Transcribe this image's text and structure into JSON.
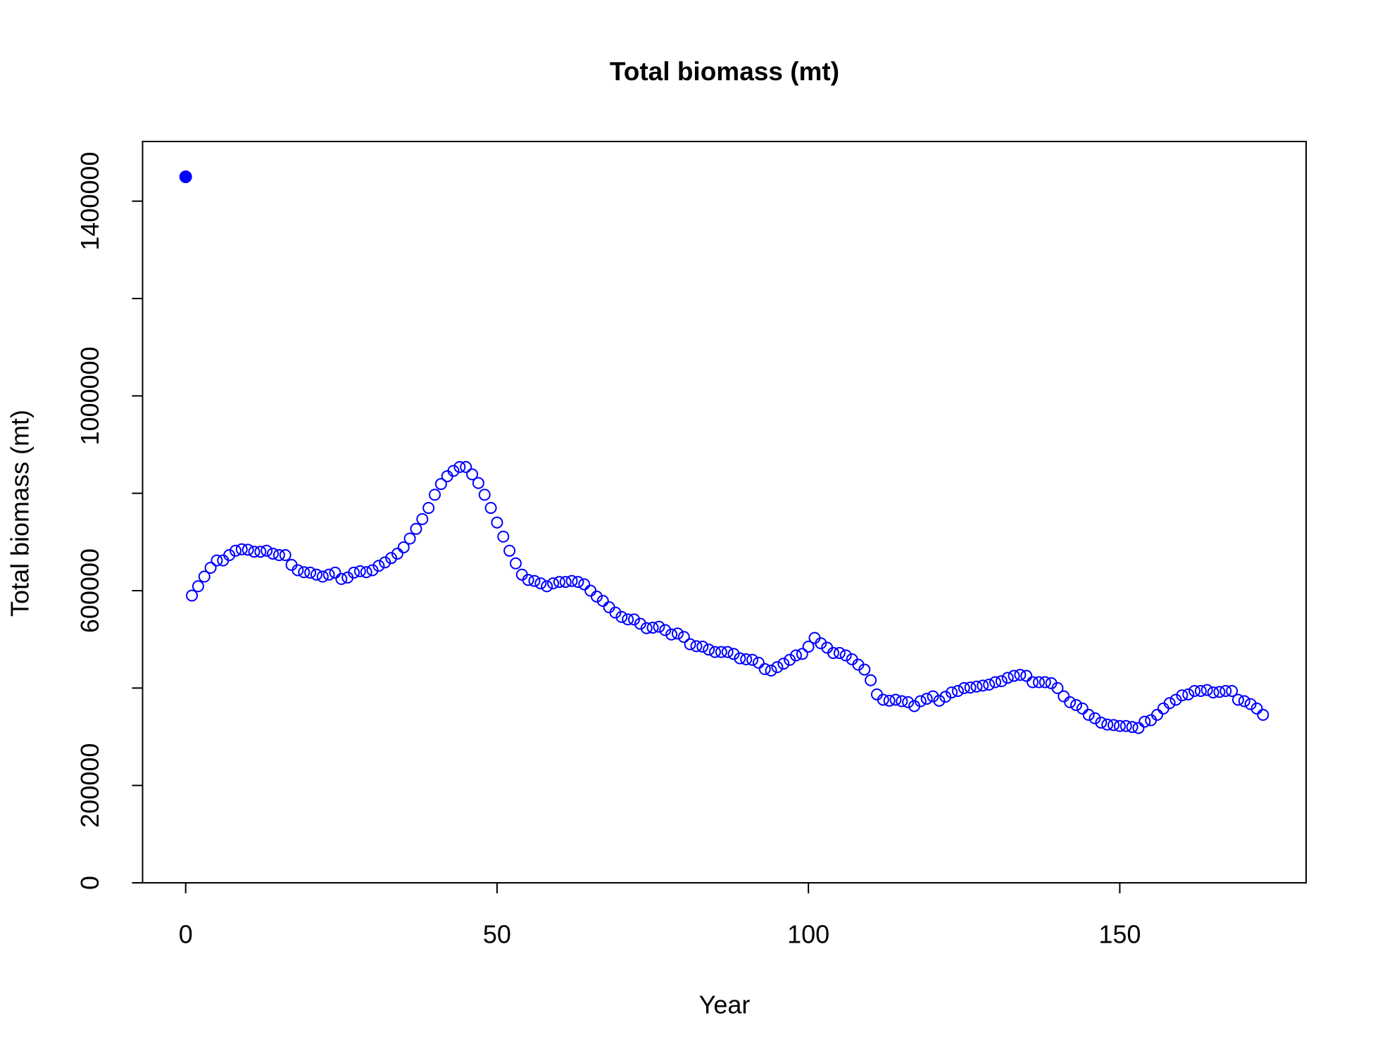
{
  "chart_data": {
    "type": "scatter",
    "title": "Total biomass (mt)",
    "x_label": "Year",
    "y_label": "Total biomass (mt)",
    "xlim": [
      -6.92,
      179.92
    ],
    "ylim": [
      0,
      1522500
    ],
    "xticks": [
      0,
      50,
      100,
      150
    ],
    "yticks": [
      0,
      200000,
      600000,
      1000000,
      1400000
    ],
    "yminorticks": [
      400000,
      800000,
      1200000
    ],
    "grid": false,
    "series": [
      {
        "color": "#0000ff",
        "filled": true,
        "x": [
          0
        ],
        "values": [
          1450000
        ]
      },
      {
        "color": "#0000ff",
        "filled": false,
        "x": [
          1,
          2,
          3,
          4,
          5,
          6,
          7,
          8,
          9,
          10,
          11,
          12,
          13,
          14,
          15,
          16,
          17,
          18,
          19,
          20,
          21,
          22,
          23,
          24,
          25,
          26,
          27,
          28,
          29,
          30,
          31,
          32,
          33,
          34,
          35,
          36,
          37,
          38,
          39,
          40,
          41,
          42,
          43,
          44,
          45,
          46,
          47,
          48,
          49,
          50,
          51,
          52,
          53,
          54,
          55,
          56,
          57,
          58,
          59,
          60,
          61,
          62,
          63,
          64,
          65,
          66,
          67,
          68,
          69,
          70,
          71,
          72,
          73,
          74,
          75,
          76,
          77,
          78,
          79,
          80,
          81,
          82,
          83,
          84,
          85,
          86,
          87,
          88,
          89,
          90,
          91,
          92,
          93,
          94,
          95,
          96,
          97,
          98,
          99,
          100,
          101,
          102,
          103,
          104,
          105,
          106,
          107,
          108,
          109,
          110,
          111,
          112,
          113,
          114,
          115,
          116,
          117,
          118,
          119,
          120,
          121,
          122,
          123,
          124,
          125,
          126,
          127,
          128,
          129,
          130,
          131,
          132,
          133,
          134,
          135,
          136,
          137,
          138,
          139,
          140,
          141,
          142,
          143,
          144,
          145,
          146,
          147,
          148,
          149,
          150,
          151,
          152,
          153,
          154,
          155,
          156,
          157,
          158,
          159,
          160,
          161,
          162,
          163,
          164,
          165,
          166,
          167,
          168,
          169,
          170,
          171,
          172,
          173
        ],
        "values": [
          590000,
          609000,
          629000,
          647000,
          662000,
          662000,
          673000,
          682000,
          685000,
          684000,
          680000,
          680000,
          682000,
          676000,
          673000,
          673000,
          653000,
          642000,
          638000,
          637000,
          633000,
          629000,
          633000,
          637000,
          624000,
          627000,
          637000,
          640000,
          638000,
          642000,
          651000,
          658000,
          667000,
          676000,
          689000,
          707000,
          727000,
          747000,
          770000,
          797000,
          819000,
          835000,
          846000,
          854000,
          854000,
          839000,
          821000,
          797000,
          770000,
          740000,
          711000,
          682000,
          656000,
          633000,
          622000,
          620000,
          615000,
          609000,
          615000,
          618000,
          618000,
          620000,
          618000,
          613000,
          600000,
          588000,
          579000,
          566000,
          555000,
          546000,
          541000,
          541000,
          532000,
          523000,
          524000,
          526000,
          519000,
          510000,
          512000,
          505000,
          490000,
          486000,
          485000,
          479000,
          474000,
          474000,
          474000,
          470000,
          461000,
          459000,
          458000,
          452000,
          439000,
          436000,
          443000,
          450000,
          458000,
          467000,
          470000,
          485000,
          503000,
          492000,
          483000,
          472000,
          472000,
          467000,
          459000,
          448000,
          438000,
          416000,
          387000,
          376000,
          374000,
          376000,
          373000,
          371000,
          363000,
          373000,
          378000,
          383000,
          374000,
          382000,
          391000,
          394000,
          400000,
          401000,
          403000,
          405000,
          407000,
          412000,
          414000,
          421000,
          425000,
          427000,
          425000,
          412000,
          412000,
          412000,
          410000,
          400000,
          383000,
          371000,
          365000,
          358000,
          345000,
          338000,
          329000,
          325000,
          324000,
          322000,
          322000,
          320000,
          318000,
          331000,
          334000,
          345000,
          358000,
          369000,
          376000,
          385000,
          387000,
          394000,
          394000,
          396000,
          391000,
          392000,
          394000,
          394000,
          376000,
          373000,
          367000,
          358000,
          345000
        ]
      }
    ]
  }
}
